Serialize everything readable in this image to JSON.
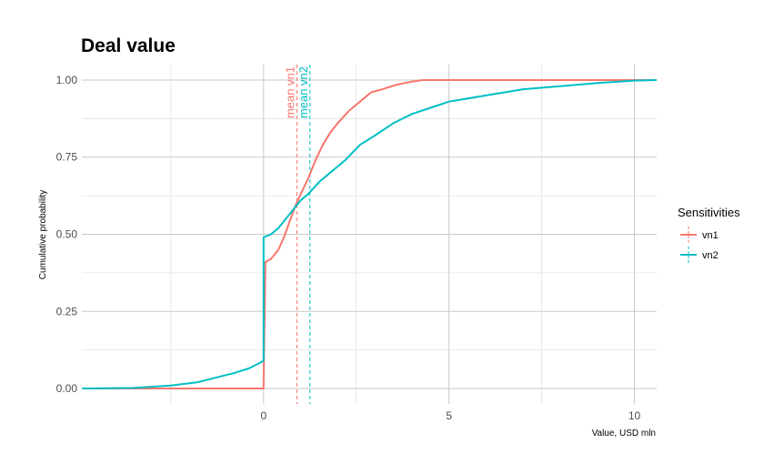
{
  "chart_data": {
    "type": "line",
    "subtype": "ecdf",
    "title": "Deal value",
    "xlabel": "Value, USD mln",
    "ylabel": "Cumulative probability",
    "xlim": [
      -4.9,
      10.6
    ],
    "ylim": [
      -0.05,
      1.05
    ],
    "x_ticks": [
      0,
      5,
      10
    ],
    "x_tick_labels": [
      "0",
      "5",
      "10"
    ],
    "y_ticks": [
      0,
      0.25,
      0.5,
      0.75,
      1.0
    ],
    "y_tick_labels": [
      "0.00",
      "0.25",
      "0.50",
      "0.75",
      "1.00"
    ],
    "grid": true,
    "legend": {
      "title": "Sensitivities",
      "position": "right"
    },
    "series": [
      {
        "name": "vn1",
        "color": "#F8766D",
        "points": [
          [
            -4.9,
            0
          ],
          [
            0,
            0
          ],
          [
            0,
            0.01
          ],
          [
            0.05,
            0.41
          ],
          [
            0.2,
            0.42
          ],
          [
            0.4,
            0.45
          ],
          [
            0.55,
            0.49
          ],
          [
            0.7,
            0.54
          ],
          [
            0.85,
            0.59
          ],
          [
            1.0,
            0.63
          ],
          [
            1.2,
            0.68
          ],
          [
            1.4,
            0.74
          ],
          [
            1.6,
            0.79
          ],
          [
            1.8,
            0.83
          ],
          [
            2.0,
            0.86
          ],
          [
            2.3,
            0.9
          ],
          [
            2.6,
            0.93
          ],
          [
            2.9,
            0.96
          ],
          [
            3.2,
            0.97
          ],
          [
            3.6,
            0.985
          ],
          [
            4.0,
            0.995
          ],
          [
            4.3,
            1.0
          ],
          [
            10.6,
            1.0
          ]
        ]
      },
      {
        "name": "vn2",
        "color": "#00BFC4",
        "points": [
          [
            -4.9,
            0
          ],
          [
            -3.5,
            0.002
          ],
          [
            -2.5,
            0.01
          ],
          [
            -1.8,
            0.02
          ],
          [
            -1.3,
            0.035
          ],
          [
            -0.8,
            0.05
          ],
          [
            -0.4,
            0.065
          ],
          [
            -0.15,
            0.08
          ],
          [
            0,
            0.09
          ],
          [
            0,
            0.49
          ],
          [
            0.2,
            0.5
          ],
          [
            0.4,
            0.52
          ],
          [
            0.6,
            0.55
          ],
          [
            0.8,
            0.58
          ],
          [
            1.0,
            0.61
          ],
          [
            1.2,
            0.63
          ],
          [
            1.5,
            0.67
          ],
          [
            1.8,
            0.7
          ],
          [
            2.2,
            0.74
          ],
          [
            2.6,
            0.79
          ],
          [
            3.0,
            0.82
          ],
          [
            3.5,
            0.86
          ],
          [
            4.0,
            0.89
          ],
          [
            4.5,
            0.91
          ],
          [
            5.0,
            0.93
          ],
          [
            6.0,
            0.95
          ],
          [
            7.0,
            0.97
          ],
          [
            8.0,
            0.98
          ],
          [
            9.0,
            0.99
          ],
          [
            10.0,
            0.998
          ],
          [
            10.6,
            1.0
          ]
        ]
      }
    ],
    "vlines": [
      {
        "series": "vn1",
        "x": 0.9,
        "label": "mean vn1",
        "color": "#F8766D",
        "style": "dashed"
      },
      {
        "series": "vn2",
        "x": 1.25,
        "label": "mean vn2",
        "color": "#00BFC4",
        "style": "dashed"
      }
    ]
  }
}
